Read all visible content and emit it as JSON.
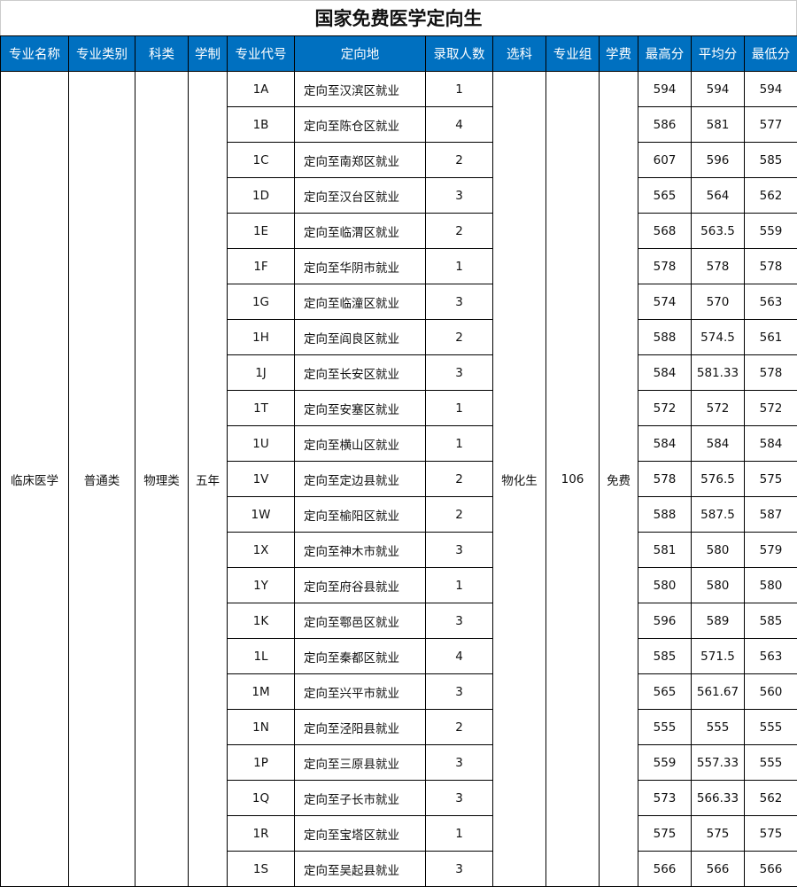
{
  "title": "国家免费医学定向生",
  "colors": {
    "header_bg": "#0070C0",
    "header_text": "#ffffff"
  },
  "headers": [
    "专业名称",
    "专业类别",
    "科类",
    "学制",
    "专业代号",
    "定向地",
    "录取人数",
    "选科",
    "专业组",
    "学费",
    "最高分",
    "平均分",
    "最低分"
  ],
  "shared": {
    "major": "临床医学",
    "category": "普通类",
    "subject_type": "物理类",
    "duration": "五年",
    "subjects": "物化生",
    "group": "106",
    "tuition": "免费"
  },
  "rows": [
    {
      "code": "1A",
      "dest": "定向至汉滨区就业",
      "count": "1",
      "max": "594",
      "avg": "594",
      "min": "594"
    },
    {
      "code": "1B",
      "dest": "定向至陈仓区就业",
      "count": "4",
      "max": "586",
      "avg": "581",
      "min": "577"
    },
    {
      "code": "1C",
      "dest": "定向至南郑区就业",
      "count": "2",
      "max": "607",
      "avg": "596",
      "min": "585"
    },
    {
      "code": "1D",
      "dest": "定向至汉台区就业",
      "count": "3",
      "max": "565",
      "avg": "564",
      "min": "562"
    },
    {
      "code": "1E",
      "dest": "定向至临渭区就业",
      "count": "2",
      "max": "568",
      "avg": "563.5",
      "min": "559"
    },
    {
      "code": "1F",
      "dest": "定向至华阴市就业",
      "count": "1",
      "max": "578",
      "avg": "578",
      "min": "578"
    },
    {
      "code": "1G",
      "dest": "定向至临潼区就业",
      "count": "3",
      "max": "574",
      "avg": "570",
      "min": "563"
    },
    {
      "code": "1H",
      "dest": "定向至阎良区就业",
      "count": "2",
      "max": "588",
      "avg": "574.5",
      "min": "561"
    },
    {
      "code": "1J",
      "dest": "定向至长安区就业",
      "count": "3",
      "max": "584",
      "avg": "581.33",
      "min": "578"
    },
    {
      "code": "1T",
      "dest": "定向至安塞区就业",
      "count": "1",
      "max": "572",
      "avg": "572",
      "min": "572"
    },
    {
      "code": "1U",
      "dest": "定向至横山区就业",
      "count": "1",
      "max": "584",
      "avg": "584",
      "min": "584"
    },
    {
      "code": "1V",
      "dest": "定向至定边县就业",
      "count": "2",
      "max": "578",
      "avg": "576.5",
      "min": "575"
    },
    {
      "code": "1W",
      "dest": "定向至榆阳区就业",
      "count": "2",
      "max": "588",
      "avg": "587.5",
      "min": "587"
    },
    {
      "code": "1X",
      "dest": "定向至神木市就业",
      "count": "3",
      "max": "581",
      "avg": "580",
      "min": "579"
    },
    {
      "code": "1Y",
      "dest": "定向至府谷县就业",
      "count": "1",
      "max": "580",
      "avg": "580",
      "min": "580"
    },
    {
      "code": "1K",
      "dest": "定向至鄠邑区就业",
      "count": "3",
      "max": "596",
      "avg": "589",
      "min": "585"
    },
    {
      "code": "1L",
      "dest": "定向至秦都区就业",
      "count": "4",
      "max": "585",
      "avg": "571.5",
      "min": "563"
    },
    {
      "code": "1M",
      "dest": "定向至兴平市就业",
      "count": "3",
      "max": "565",
      "avg": "561.67",
      "min": "560"
    },
    {
      "code": "1N",
      "dest": "定向至泾阳县就业",
      "count": "2",
      "max": "555",
      "avg": "555",
      "min": "555"
    },
    {
      "code": "1P",
      "dest": "定向至三原县就业",
      "count": "3",
      "max": "559",
      "avg": "557.33",
      "min": "555"
    },
    {
      "code": "1Q",
      "dest": "定向至子长市就业",
      "count": "3",
      "max": "573",
      "avg": "566.33",
      "min": "562"
    },
    {
      "code": "1R",
      "dest": "定向至宝塔区就业",
      "count": "1",
      "max": "575",
      "avg": "575",
      "min": "575"
    },
    {
      "code": "1S",
      "dest": "定向至吴起县就业",
      "count": "3",
      "max": "566",
      "avg": "566",
      "min": "566"
    }
  ]
}
